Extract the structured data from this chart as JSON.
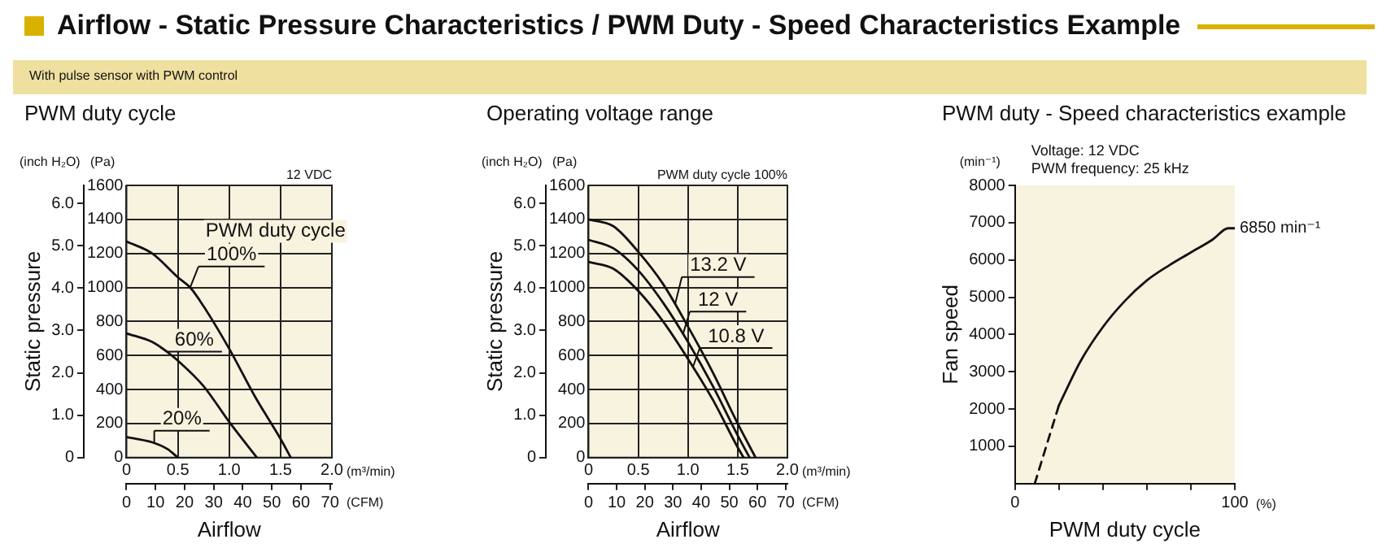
{
  "chart_data": [
    {
      "type": "line",
      "title": "PWM duty cycle",
      "xlabel": "Airflow",
      "ylabel": "Static pressure",
      "legend_title": "PWM duty cycle",
      "xlim": [
        0,
        2
      ],
      "xticks": [
        0,
        0.5,
        {
          "value": 1,
          "label": "1.0"
        },
        1.5,
        {
          "value": 2,
          "label": "2.0"
        }
      ],
      "x2lim": [
        0,
        70.63
      ],
      "x2ticks": [
        0,
        10,
        20,
        30,
        40,
        50,
        60,
        70
      ],
      "y2lim": [
        0,
        1600
      ],
      "y2ticks": [
        0,
        200,
        400,
        600,
        800,
        1000,
        1200,
        1400,
        1600
      ],
      "ylim": [
        0,
        6.423
      ],
      "yticks": [
        0,
        {
          "value": 1,
          "label": "1.0"
        },
        {
          "value": 2,
          "label": "2.0"
        },
        {
          "value": 3,
          "label": "3.0"
        },
        {
          "value": 4,
          "label": "4.0"
        },
        {
          "value": 5,
          "label": "5.0"
        },
        {
          "value": 6,
          "label": "6.0"
        }
      ],
      "grid": true,
      "marker": "none",
      "annotations": [
        "(inch H₂O)",
        "(Pa)",
        "(m³/min)",
        "(CFM)",
        "12 VDC",
        "Airflow - Static Pressure Characteristics / PWM Duty - Speed Characteristics Example",
        "With pulse sensor with PWM control"
      ],
      "series": [
        {
          "name": "100%",
          "color": "#111111",
          "axis": "y2",
          "x": [
            0,
            0.25,
            0.5,
            0.62,
            0.75,
            1.0,
            1.25,
            1.5,
            1.6
          ],
          "values": [
            1270,
            1200,
            1060,
            1000,
            890,
            640,
            360,
            110,
            0
          ]
        },
        {
          "name": "60%",
          "color": "#111111",
          "axis": "y2",
          "x": [
            0,
            0.25,
            0.4,
            0.5,
            0.75,
            1.0,
            1.27
          ],
          "values": [
            730,
            680,
            620,
            570,
            420,
            210,
            0
          ]
        },
        {
          "name": "20%",
          "color": "#111111",
          "axis": "y2",
          "x": [
            0,
            0.1,
            0.25,
            0.4,
            0.5
          ],
          "values": [
            120,
            110,
            90,
            50,
            0
          ]
        }
      ]
    },
    {
      "type": "line",
      "title": "Operating voltage range",
      "xlabel": "Airflow",
      "ylabel": "Static pressure",
      "xlim": [
        0,
        2
      ],
      "xticks": [
        0,
        0.5,
        {
          "value": 1,
          "label": "1.0"
        },
        1.5,
        {
          "value": 2,
          "label": "2.0"
        }
      ],
      "x2lim": [
        0,
        70.63
      ],
      "x2ticks": [
        0,
        10,
        20,
        30,
        40,
        50,
        60,
        70
      ],
      "y2lim": [
        0,
        1600
      ],
      "y2ticks": [
        0,
        200,
        400,
        600,
        800,
        1000,
        1200,
        1400,
        1600
      ],
      "ylim": [
        0,
        6.423
      ],
      "yticks": [
        0,
        {
          "value": 1,
          "label": "1.0"
        },
        {
          "value": 2,
          "label": "2.0"
        },
        {
          "value": 3,
          "label": "3.0"
        },
        {
          "value": 4,
          "label": "4.0"
        },
        {
          "value": 5,
          "label": "5.0"
        },
        {
          "value": 6,
          "label": "6.0"
        }
      ],
      "grid": true,
      "marker": "none",
      "legend": "right",
      "annotations": [
        "(inch H₂O)",
        "(Pa)",
        "(m³/min)",
        "(CFM)",
        "PWM duty cycle 100%"
      ],
      "series": [
        {
          "name": "13.2 V",
          "color": "#111111",
          "axis": "y2",
          "x": [
            0,
            0.25,
            0.5,
            0.75,
            1.0,
            1.25,
            1.5,
            1.68
          ],
          "values": [
            1400,
            1360,
            1210,
            1020,
            770,
            500,
            200,
            0
          ]
        },
        {
          "name": "12 V",
          "color": "#111111",
          "axis": "y2",
          "x": [
            0,
            0.25,
            0.5,
            0.75,
            1.0,
            1.25,
            1.5,
            1.62
          ],
          "values": [
            1280,
            1230,
            1100,
            910,
            680,
            420,
            130,
            0
          ]
        },
        {
          "name": "10.8 V",
          "color": "#111111",
          "axis": "y2",
          "x": [
            0,
            0.25,
            0.5,
            0.75,
            1.0,
            1.25,
            1.5,
            1.56
          ],
          "values": [
            1150,
            1110,
            980,
            800,
            580,
            340,
            60,
            0
          ]
        }
      ]
    },
    {
      "type": "line",
      "title": "PWM duty - Speed characteristics example",
      "xlabel": "PWM duty cycle",
      "ylabel": "Fan speed",
      "xlim": [
        0,
        100
      ],
      "xticks": [
        0,
        {
          "value": 20,
          "label": null
        },
        {
          "value": 40,
          "label": null
        },
        {
          "value": 60,
          "label": null
        },
        {
          "value": 80,
          "label": null
        },
        100
      ],
      "ylim": [
        0,
        8000
      ],
      "yticks": [
        1000,
        2000,
        3000,
        4000,
        5000,
        6000,
        7000,
        8000
      ],
      "marker": "none",
      "annotations": [
        "(min⁻¹)",
        "Voltage: 12 VDC",
        "PWM frequency: 25 kHz",
        "(%)",
        {
          "text": "6850 min⁻¹",
          "x": 100,
          "y": 6850
        }
      ],
      "series": [
        {
          "color": "#111111",
          "line_style": "dashed",
          "x": [
            9,
            20
          ],
          "values": [
            0,
            2100
          ]
        },
        {
          "color": "#111111",
          "line_style": "solid",
          "x": [
            20,
            30,
            40,
            50,
            60,
            70,
            80,
            90,
            97,
            100
          ],
          "values": [
            2100,
            3300,
            4200,
            4900,
            5450,
            5850,
            6200,
            6550,
            6850,
            6850
          ]
        }
      ]
    }
  ]
}
